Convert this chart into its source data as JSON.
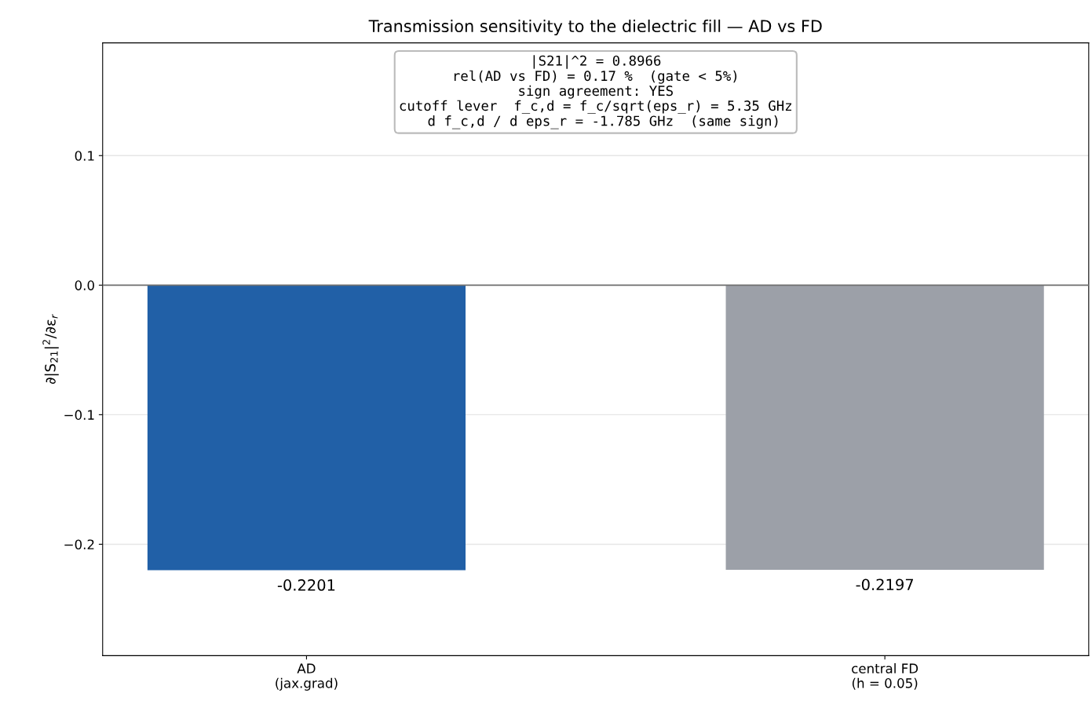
{
  "chart_data": {
    "type": "bar",
    "title": "Transmission sensitivity to the dielectric fill — AD vs FD",
    "ylabel": "∂|S$_{21}$|$^{2}$/∂ε$_{r}$",
    "categories": [
      "AD\n(jax.grad)",
      "central FD\n(h = 0.05)"
    ],
    "values": [
      -0.2201,
      -0.2197
    ],
    "colors": [
      "#2160a7",
      "#9ca0a8"
    ],
    "value_labels": [
      "-0.2201",
      "-0.2197"
    ],
    "ylim": [
      -0.286,
      0.187
    ],
    "yticks": [
      {
        "value": -0.2,
        "label": "−0.2"
      },
      {
        "value": -0.1,
        "label": "−0.1"
      },
      {
        "value": 0,
        "label": "0.0"
      },
      {
        "value": 0.1,
        "label": "0.1"
      }
    ],
    "ref_lines": [
      {
        "axis": "y",
        "value": 0,
        "color": "#707070"
      }
    ],
    "grid": "y",
    "annotations": [
      "|S21|^2 = 0.8966\nrel(AD vs FD) = 0.17 %  (gate < 5%)\nsign agreement: YES\ncutoff lever  f_c,d = f_c/sqrt(eps_r) = 5.35 GHz\n  d f_c,d / d eps_r = -1.785 GHz  (same sign)"
    ]
  }
}
